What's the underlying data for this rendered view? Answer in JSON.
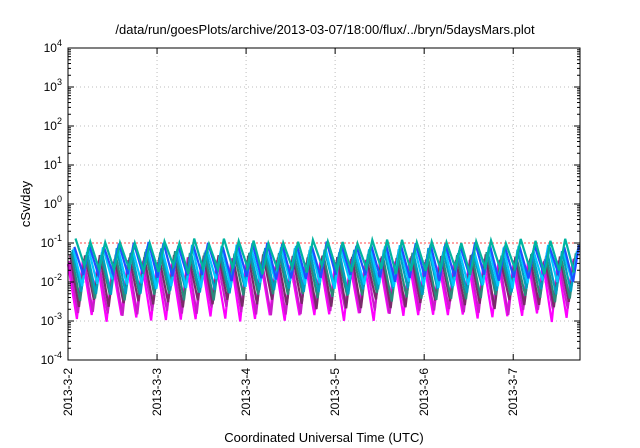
{
  "chart_data": {
    "type": "line",
    "title": "/data/run/goesPlots/archive/2013-03-07/18:00/flux/../bryn/5daysMars.plot",
    "xlabel": "Coordinated Universal Time (UTC)",
    "ylabel": "cSv/day",
    "x_ticks": [
      "2013-3-2",
      "2013-3-3",
      "2013-3-4",
      "2013-3-5",
      "2013-3-6",
      "2013-3-7"
    ],
    "xlim": [
      "2013-03-02 00:00",
      "2013-03-07 18:00"
    ],
    "y_scale": "log",
    "ylim": [
      0.0001,
      10000
    ],
    "y_tick_base": "10",
    "y_tick_exponents": [
      "4",
      "3",
      "2",
      "1",
      "0",
      "-1",
      "-2",
      "-3",
      "-4"
    ],
    "grid": true,
    "legend": "none",
    "pattern": {
      "description": "Spiky periodic bands",
      "peaks_per_day": 6,
      "peak_range": [
        0.03,
        0.11
      ],
      "trough_range": [
        0.0012,
        0.02
      ]
    },
    "series_colors": [
      "#ff00ff",
      "#c81ec8",
      "#7a2a6a",
      "#2a8a7a",
      "#00a0c0",
      "#00c8ff",
      "#1e50ff",
      "#00b4a0"
    ],
    "reference_line": {
      "value": 0.1,
      "color": "#ff4a4a"
    }
  }
}
